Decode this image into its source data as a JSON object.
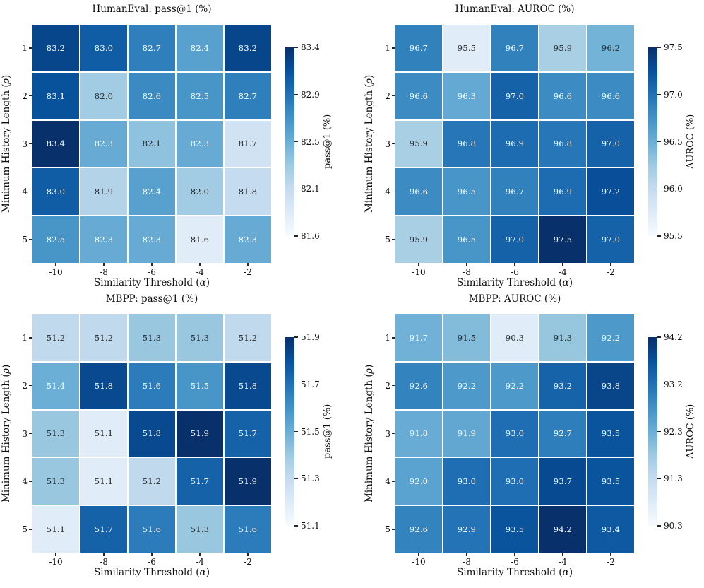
{
  "figure": {
    "background": "#ffffff",
    "text_color": "#0d0d0d",
    "colormap_name": "Blues",
    "colormap_anchors": [
      "#f7fbff",
      "#deebf7",
      "#c6dbef",
      "#9ecae1",
      "#6baed6",
      "#4292c6",
      "#2171b5",
      "#08519c",
      "#08306b"
    ],
    "annotation_dark_text": "#262626",
    "annotation_light_text": "#ffffff"
  },
  "chart_data": [
    {
      "type": "heatmap",
      "id": "humaneval-pass1",
      "title": "HumanEval: pass@1 (%)",
      "xlabel": "Similarity Threshold (α)",
      "ylabel": "Minimum History Length (ρ)",
      "x_tick_labels": [
        "-10",
        "-8",
        "-6",
        "-4",
        "-2"
      ],
      "y_tick_labels": [
        "1",
        "2",
        "3",
        "4",
        "5"
      ],
      "values": [
        [
          83.2,
          83.0,
          82.7,
          82.4,
          83.2
        ],
        [
          83.1,
          82.0,
          82.6,
          82.5,
          82.7
        ],
        [
          83.4,
          82.3,
          82.1,
          82.3,
          81.7
        ],
        [
          83.0,
          81.9,
          82.4,
          82.0,
          81.8
        ],
        [
          82.5,
          82.3,
          82.3,
          81.6,
          82.3
        ]
      ],
      "vmin": 81.6,
      "vmax": 83.4,
      "grid": false,
      "colorbar": {
        "label": "pass@1 (%)",
        "tick_labels_top_to_bottom": [
          "83.4",
          "82.9",
          "82.5",
          "82.1",
          "81.6"
        ]
      }
    },
    {
      "type": "heatmap",
      "id": "humaneval-auroc",
      "title": "HumanEval: AUROC (%)",
      "xlabel": "Similarity Threshold (α)",
      "ylabel": "Minimum History Length (ρ)",
      "x_tick_labels": [
        "-10",
        "-8",
        "-6",
        "-4",
        "-2"
      ],
      "y_tick_labels": [
        "1",
        "2",
        "3",
        "4",
        "5"
      ],
      "values": [
        [
          96.7,
          95.5,
          96.7,
          95.9,
          96.2
        ],
        [
          96.6,
          96.3,
          97.0,
          96.6,
          96.6
        ],
        [
          95.9,
          96.8,
          96.9,
          96.8,
          97.0
        ],
        [
          96.6,
          96.5,
          96.7,
          96.9,
          97.2
        ],
        [
          95.9,
          96.5,
          97.0,
          97.5,
          97.0
        ]
      ],
      "vmin": 95.5,
      "vmax": 97.5,
      "grid": false,
      "colorbar": {
        "label": "AUROC (%)",
        "tick_labels_top_to_bottom": [
          "97.5",
          "97.0",
          "96.5",
          "96.0",
          "95.5"
        ]
      }
    },
    {
      "type": "heatmap",
      "id": "mbpp-pass1",
      "title": "MBPP: pass@1 (%)",
      "xlabel": "Similarity Threshold (α)",
      "ylabel": "Minimum History Length (ρ)",
      "x_tick_labels": [
        "-10",
        "-8",
        "-6",
        "-4",
        "-2"
      ],
      "y_tick_labels": [
        "1",
        "2",
        "3",
        "4",
        "5"
      ],
      "values": [
        [
          51.2,
          51.2,
          51.3,
          51.3,
          51.2
        ],
        [
          51.4,
          51.8,
          51.6,
          51.5,
          51.8
        ],
        [
          51.3,
          51.1,
          51.8,
          51.9,
          51.7
        ],
        [
          51.3,
          51.1,
          51.2,
          51.7,
          51.9
        ],
        [
          51.1,
          51.7,
          51.6,
          51.3,
          51.6
        ]
      ],
      "vmin": 51.1,
      "vmax": 51.9,
      "grid": false,
      "colorbar": {
        "label": "pass@1 (%)",
        "tick_labels_top_to_bottom": [
          "51.9",
          "51.7",
          "51.5",
          "51.3",
          "51.1"
        ]
      }
    },
    {
      "type": "heatmap",
      "id": "mbpp-auroc",
      "title": "MBPP: AUROC (%)",
      "xlabel": "Similarity Threshold (α)",
      "ylabel": "Minimum History Length (ρ)",
      "x_tick_labels": [
        "-10",
        "-8",
        "-6",
        "-4",
        "-2"
      ],
      "y_tick_labels": [
        "1",
        "2",
        "3",
        "4",
        "5"
      ],
      "values": [
        [
          91.7,
          91.5,
          90.3,
          91.3,
          92.2
        ],
        [
          92.6,
          92.2,
          92.2,
          93.2,
          93.8
        ],
        [
          91.8,
          91.9,
          93.0,
          92.7,
          93.5
        ],
        [
          92.0,
          93.0,
          93.0,
          93.7,
          93.5
        ],
        [
          92.6,
          92.9,
          93.5,
          94.2,
          93.4
        ]
      ],
      "vmin": 90.3,
      "vmax": 94.2,
      "grid": false,
      "colorbar": {
        "label": "AUROC (%)",
        "tick_labels_top_to_bottom": [
          "94.2",
          "93.2",
          "92.3",
          "91.3",
          "90.3"
        ]
      }
    }
  ]
}
